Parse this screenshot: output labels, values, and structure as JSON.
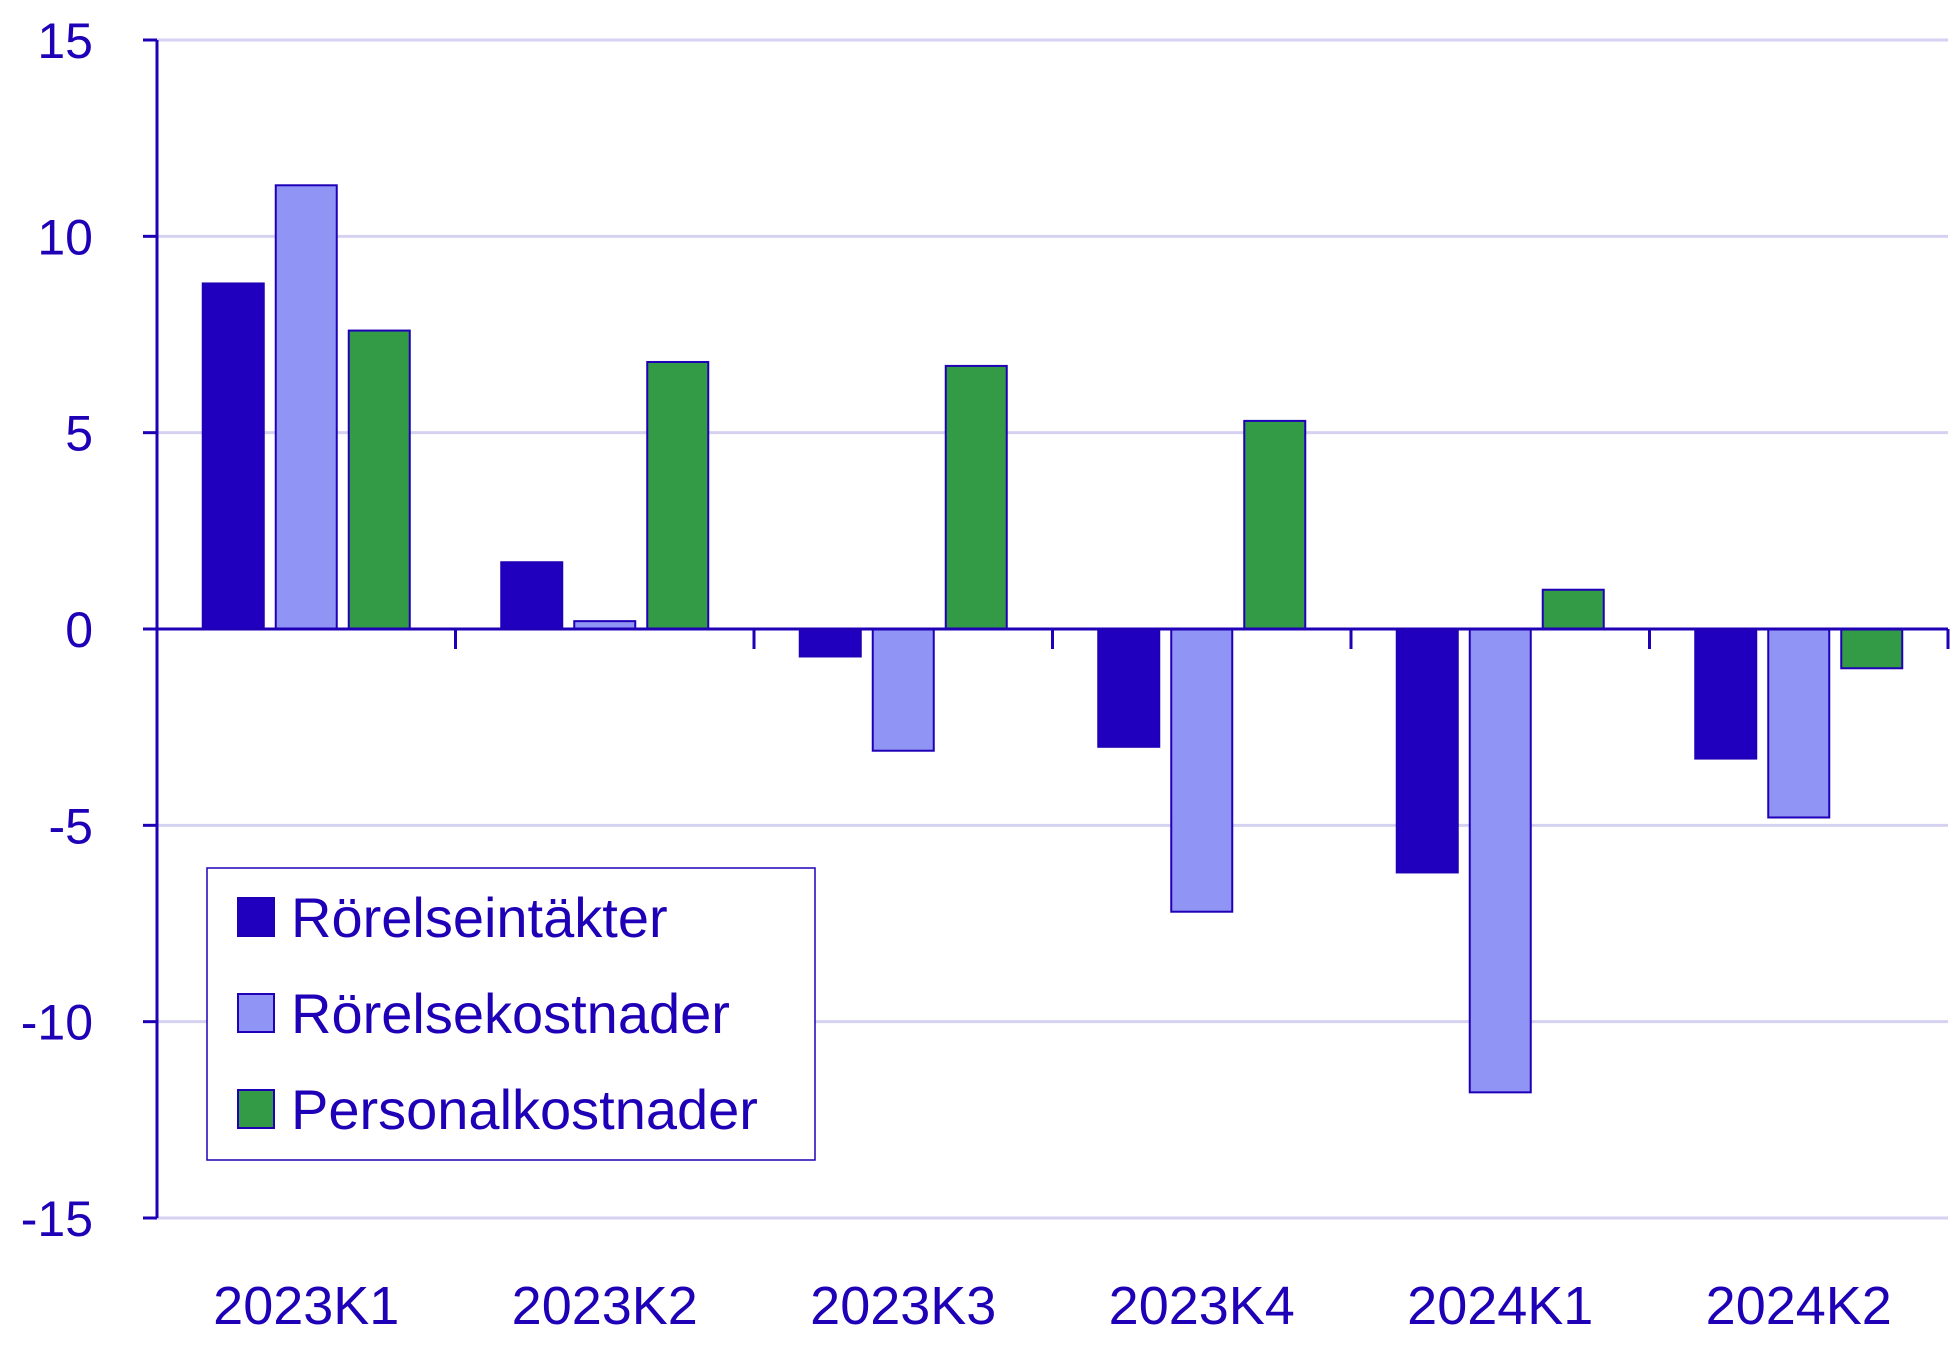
{
  "chart_data": {
    "type": "bar",
    "title": "",
    "xlabel": "",
    "ylabel": "",
    "ylim": [
      -15,
      15
    ],
    "yticks": [
      15,
      10,
      5,
      0,
      -5,
      -10,
      -15
    ],
    "grid": true,
    "legend_position": "bottom-left",
    "categories": [
      "2023K1",
      "2023K2",
      "2023K3",
      "2023K4",
      "2024K1",
      "2024K2"
    ],
    "series": [
      {
        "name": "Rörelseintäkter",
        "color": "#2000be",
        "values": [
          8.8,
          1.7,
          -0.7,
          -3.0,
          -6.2,
          -3.3
        ]
      },
      {
        "name": "Rörelsekostnader",
        "color": "#8f94f5",
        "values": [
          11.3,
          0.2,
          -3.1,
          -7.2,
          -11.8,
          -4.8
        ]
      },
      {
        "name": "Personalkostnader",
        "color": "#339a45",
        "values": [
          7.6,
          6.8,
          6.7,
          5.3,
          1.0,
          -1.0
        ]
      }
    ],
    "colors": {
      "axis": "#1f00b7",
      "grid": "#d4d2f0",
      "bar_stroke": "#1f00b7"
    }
  }
}
